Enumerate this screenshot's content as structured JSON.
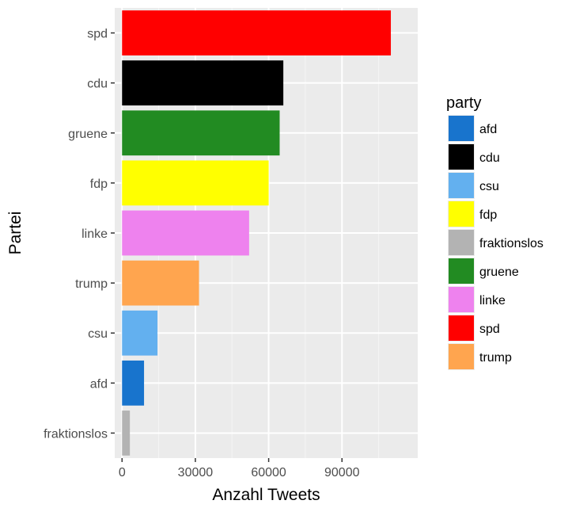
{
  "chart_data": {
    "type": "bar",
    "orientation": "horizontal",
    "xlabel": "Anzahl Tweets",
    "ylabel": "Partei",
    "xlim": [
      -3000,
      121000
    ],
    "x_ticks": [
      0,
      30000,
      60000,
      90000
    ],
    "x_tick_labels": [
      "0",
      "30000",
      "60000",
      "90000"
    ],
    "grid": true,
    "legend_position": "right",
    "categories": [
      "spd",
      "cdu",
      "gruene",
      "fdp",
      "linke",
      "trump",
      "csu",
      "afd",
      "fraktionslos"
    ],
    "values": [
      110000,
      66000,
      64500,
      60000,
      52000,
      31500,
      14500,
      9000,
      3200
    ],
    "bar_colors": [
      "#ff0000",
      "#000000",
      "#228b22",
      "#ffff00",
      "#ee82ee",
      "#ffa54f",
      "#63b0ef",
      "#1874cd",
      "#b3b3b3"
    ],
    "legend": {
      "title": "party",
      "items": [
        {
          "label": "afd",
          "color": "#1874cd"
        },
        {
          "label": "cdu",
          "color": "#000000"
        },
        {
          "label": "csu",
          "color": "#63b0ef"
        },
        {
          "label": "fdp",
          "color": "#ffff00"
        },
        {
          "label": "fraktionslos",
          "color": "#b3b3b3"
        },
        {
          "label": "gruene",
          "color": "#228b22"
        },
        {
          "label": "linke",
          "color": "#ee82ee"
        },
        {
          "label": "spd",
          "color": "#ff0000"
        },
        {
          "label": "trump",
          "color": "#ffa54f"
        }
      ]
    },
    "colors": {
      "panel_background": "#ebebeb",
      "grid_major": "#ffffff",
      "grid_minor": "#f5f5f5",
      "tick_mark": "#333333"
    }
  }
}
